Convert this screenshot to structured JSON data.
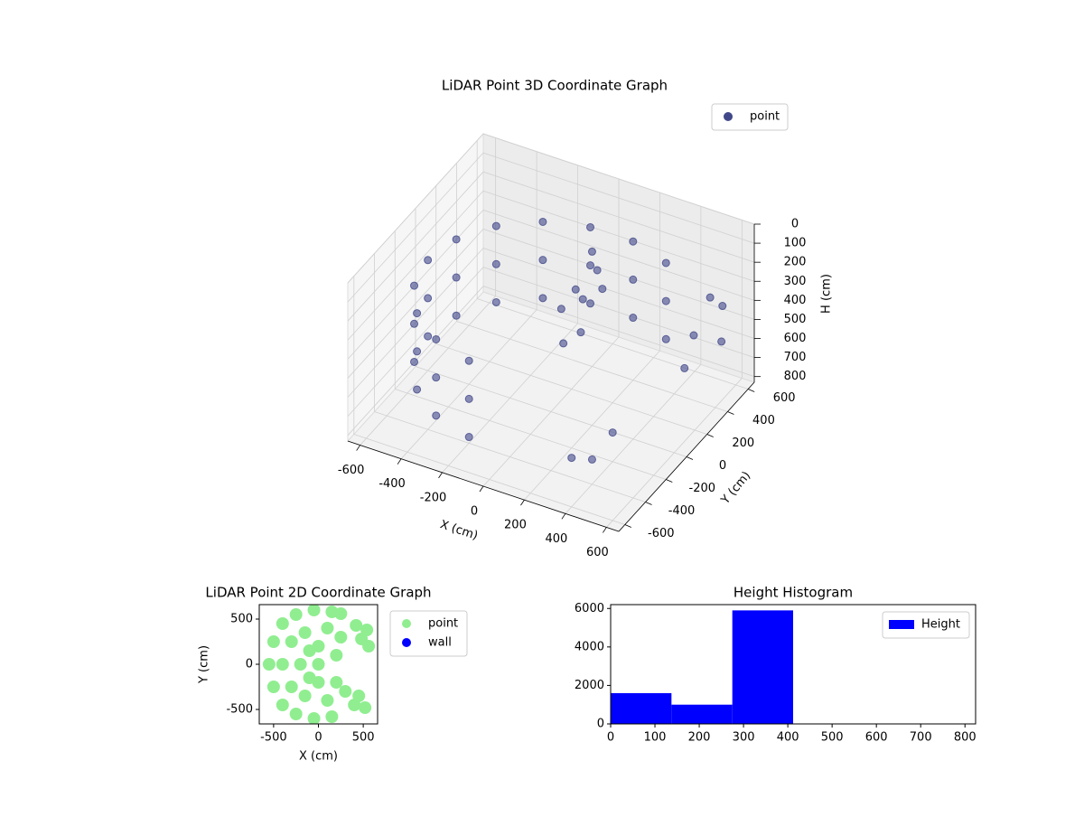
{
  "chart_data": [
    {
      "type": "scatter3d",
      "title": "LiDAR Point 3D Coordinate Graph",
      "xlabel": "X (cm)",
      "ylabel": "Y (cm)",
      "zlabel": "H (cm)",
      "xlim": [
        -660,
        660
      ],
      "ylim": [
        -660,
        660
      ],
      "zlim": [
        0,
        830
      ],
      "zinvert": true,
      "xticks": [
        -600,
        -400,
        -200,
        0,
        200,
        400,
        600
      ],
      "yticks": [
        -600,
        -400,
        -200,
        0,
        200,
        400,
        600
      ],
      "zticks": [
        0,
        100,
        200,
        300,
        400,
        500,
        600,
        700,
        800
      ],
      "legend": "upper right",
      "series": [
        {
          "name": "point",
          "color": "#41488a",
          "x": [
            -104,
            -300,
            -460,
            -564,
            -600,
            -564,
            -460,
            -300,
            -104,
            104,
            300,
            -104,
            -300,
            -460,
            -564,
            -600,
            -564,
            -460,
            -300,
            -104,
            104,
            300,
            -104,
            -300,
            -460,
            -564,
            -600,
            -564,
            -460,
            -300,
            -104,
            104,
            300,
            50,
            100,
            150,
            80,
            0,
            120,
            60,
            20,
            550,
            520,
            580,
            500,
            560,
            400,
            350,
            450
          ],
          "y": [
            591,
            520,
            386,
            205,
            0,
            -205,
            -386,
            -520,
            -591,
            591,
            520,
            591,
            520,
            386,
            205,
            0,
            -205,
            -386,
            -520,
            -591,
            591,
            520,
            591,
            520,
            386,
            205,
            0,
            -205,
            -386,
            -520,
            -591,
            591,
            520,
            300,
            250,
            200,
            150,
            100,
            50,
            0,
            200,
            450,
            350,
            500,
            300,
            550,
            -400,
            -500,
            -300
          ],
          "z": [
            250,
            250,
            250,
            250,
            250,
            250,
            250,
            250,
            250,
            250,
            250,
            450,
            450,
            450,
            450,
            450,
            450,
            450,
            450,
            450,
            450,
            450,
            650,
            650,
            650,
            650,
            650,
            650,
            650,
            650,
            650,
            650,
            650,
            150,
            200,
            250,
            300,
            350,
            400,
            450,
            300,
            300,
            450,
            550,
            600,
            400,
            700,
            650,
            600
          ]
        }
      ]
    },
    {
      "type": "scatter",
      "title": "LiDAR Point 2D Coordinate Graph",
      "xlabel": "X (cm)",
      "ylabel": "Y (cm)",
      "xlim": [
        -660,
        660
      ],
      "ylim": [
        -660,
        660
      ],
      "xticks": [
        -500,
        0,
        500
      ],
      "yticks": [
        -500,
        0,
        500
      ],
      "legend": "outside right",
      "series": [
        {
          "name": "point",
          "color": "#90ee90",
          "x": [
            -550,
            -500,
            -500,
            -400,
            -400,
            -250,
            -250,
            -50,
            -50,
            150,
            250,
            150,
            -400,
            -300,
            -300,
            -200,
            -150,
            -150,
            0,
            0,
            0,
            100,
            100,
            200,
            250,
            200,
            -100,
            -100,
            300,
            400,
            450,
            520,
            420,
            480,
            560,
            540
          ],
          "y": [
            0,
            -250,
            250,
            -450,
            450,
            -550,
            550,
            -600,
            600,
            580,
            560,
            -580,
            0,
            -250,
            250,
            0,
            -350,
            350,
            -200,
            200,
            0,
            -400,
            400,
            100,
            300,
            -200,
            -150,
            150,
            -300,
            -450,
            -350,
            -480,
            430,
            280,
            200,
            380
          ]
        },
        {
          "name": "wall",
          "color": "#0000ff",
          "x": [],
          "y": []
        }
      ]
    },
    {
      "type": "hist",
      "title": "Height Histogram",
      "xlim": [
        0,
        824
      ],
      "ylim": [
        0,
        6200
      ],
      "xticks": [
        0,
        100,
        200,
        300,
        400,
        500,
        600,
        700,
        800
      ],
      "yticks": [
        0,
        2000,
        4000,
        6000
      ],
      "legend": "upper right",
      "series": [
        {
          "name": "Height",
          "color": "#0000ff",
          "bins": [
            0,
            137.3,
            274.7,
            412,
            549.3,
            686.7,
            824
          ],
          "counts": [
            1600,
            1000,
            5900,
            0,
            0,
            0
          ]
        }
      ]
    }
  ]
}
